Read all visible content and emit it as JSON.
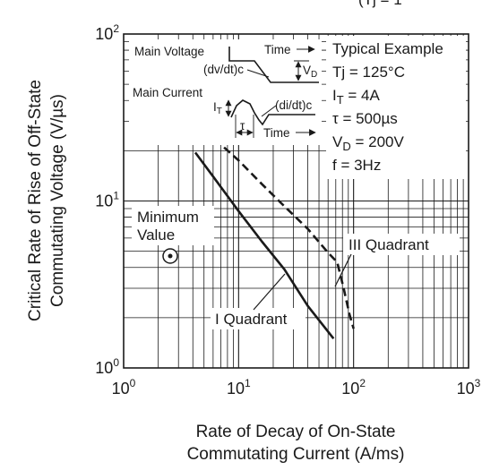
{
  "partial_header": "(Tj = 1",
  "chart_data": {
    "type": "line",
    "x_scale": "log",
    "y_scale": "log",
    "xlim": [
      1,
      1000
    ],
    "ylim": [
      1,
      100
    ],
    "grid": true,
    "x_ticks": [
      {
        "base": "10",
        "exp": "0",
        "value": 1
      },
      {
        "base": "10",
        "exp": "1",
        "value": 10
      },
      {
        "base": "10",
        "exp": "2",
        "value": 100
      },
      {
        "base": "10",
        "exp": "3",
        "value": 1000
      }
    ],
    "y_ticks": [
      {
        "base": "10",
        "exp": "0",
        "value": 1
      },
      {
        "base": "10",
        "exp": "1",
        "value": 10
      },
      {
        "base": "10",
        "exp": "2",
        "value": 100
      }
    ],
    "xlabel_lines": [
      "Rate of Decay of On-State",
      "Commutating Current  (A/ms)"
    ],
    "ylabel_lines": [
      "Critical Rate of Rise of Off-State",
      "Commutating Voltage  (V/µs)"
    ],
    "series": [
      {
        "name": "I Quadrant",
        "style": "solid",
        "x": [
          4.2,
          6,
          10,
          16,
          25,
          40,
          67
        ],
        "y": [
          19.5,
          14.0,
          8.7,
          5.7,
          3.9,
          2.35,
          1.5
        ]
      },
      {
        "name": "III Quadrant",
        "style": "dashed",
        "x": [
          6.2,
          10,
          16,
          25,
          40,
          60,
          72,
          82,
          92,
          100
        ],
        "y": [
          23.5,
          17.5,
          12.6,
          9.3,
          6.8,
          4.9,
          4.3,
          3.0,
          2.1,
          1.72
        ]
      }
    ],
    "annotations": {
      "minimum_value": [
        "Minimum",
        "Value"
      ],
      "quadrant_1": "I Quadrant",
      "quadrant_3": "III Quadrant"
    },
    "conditions": [
      {
        "text": "Typical Example"
      },
      {
        "text": "Tj = 125°C"
      },
      {
        "pre": "I",
        "sub": "T",
        "post": " = 4A"
      },
      {
        "text": "τ = 500µs"
      },
      {
        "pre": "V",
        "sub": "D",
        "post": " = 200V"
      },
      {
        "text": "f = 3Hz"
      }
    ],
    "inset": {
      "main_voltage": "Main Voltage",
      "main_current": "Main Current",
      "time": "Time",
      "dv_dt": "(dv/dt)c",
      "di_dt": "(di/dt)c",
      "vd": {
        "base": "V",
        "sub": "D"
      },
      "it": {
        "base": "I",
        "sub": "T"
      },
      "tau": "τ"
    }
  }
}
